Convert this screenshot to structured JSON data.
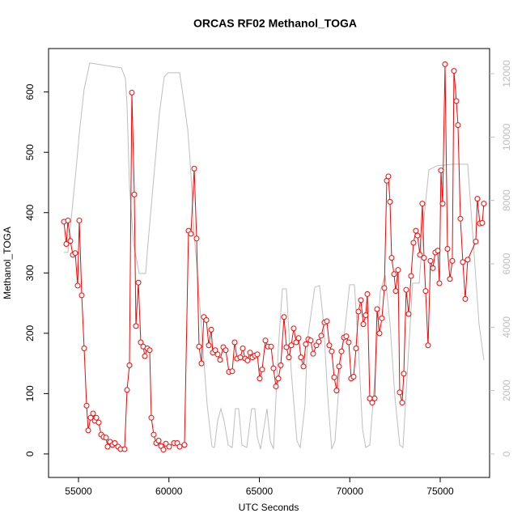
{
  "chart_data": {
    "type": "line",
    "title": "ORCAS RF02 Methanol_TOGA",
    "x_label": "UTC Seconds",
    "y_label": "Methanol_TOGA",
    "xlim": [
      53345,
      77730
    ],
    "xticks": [
      55000,
      60000,
      65000,
      70000,
      75000
    ],
    "ylim": [
      -39,
      672
    ],
    "yticks": [
      0,
      100,
      200,
      300,
      400,
      500,
      600
    ],
    "y2lim": [
      -741,
      12792
    ],
    "y2ticks": [
      0,
      2000,
      4000,
      6000,
      8000,
      10000,
      12000
    ],
    "y2_color": "#bebebe",
    "series": [
      {
        "color": "#bebebe",
        "axis": "y2",
        "markers": false,
        "x": [
          54194,
          54418,
          54687,
          54866,
          55045,
          55313,
          55626,
          57371,
          57595,
          57684,
          57818,
          58042,
          58355,
          58713,
          58847,
          59161,
          59474,
          59742,
          59966,
          60592,
          60727,
          61040,
          61174,
          61398,
          61621,
          61845,
          62113,
          62382,
          62516,
          62695,
          62874,
          63053,
          63277,
          63500,
          63679,
          63858,
          64037,
          64306,
          64574,
          64753,
          64887,
          65066,
          65245,
          65424,
          65603,
          65782,
          66051,
          66274,
          66498,
          66766,
          67080,
          67259,
          67527,
          67661,
          68064,
          68332,
          68556,
          68780,
          69003,
          69182,
          69451,
          69764,
          69988,
          70256,
          70480,
          70704,
          70882,
          71106,
          71375,
          71688,
          71956,
          72225,
          72493,
          72762,
          72941,
          73209,
          73477,
          73835,
          74104,
          74372,
          74640,
          74819,
          75714,
          76519,
          76832,
          77145,
          77414
        ],
        "values": [
          6360,
          6360,
          7943,
          8965,
          10114,
          11519,
          12336,
          12183,
          11851,
          11008,
          8454,
          6666,
          5695,
          5695,
          6666,
          8709,
          10752,
          11902,
          12029,
          12029,
          11519,
          10242,
          9220,
          6921,
          5389,
          3601,
          1558,
          230,
          204,
          1047,
          1430,
          1047,
          281,
          204,
          1430,
          1430,
          281,
          204,
          1430,
          1430,
          536,
          153,
          792,
          1430,
          409,
          153,
          3346,
          5210,
          5210,
          2580,
          409,
          204,
          1558,
          3601,
          5261,
          5312,
          4112,
          1813,
          153,
          409,
          2580,
          4112,
          5338,
          5338,
          3346,
          792,
          204,
          281,
          2324,
          5134,
          5644,
          4112,
          1813,
          281,
          204,
          2835,
          5389,
          5389,
          7432,
          8965,
          9041,
          9092,
          9143,
          9143,
          6666,
          4112,
          2963
        ]
      },
      {
        "color": "#ff0000",
        "markers": true,
        "x": [
          54194,
          54329,
          54418,
          54552,
          54687,
          54821,
          54955,
          55045,
          55179,
          55313,
          55448,
          55537,
          55671,
          55805,
          55895,
          55985,
          56119,
          56253,
          56387,
          56521,
          56610,
          56745,
          56879,
          57013,
          57192,
          57326,
          57550,
          57684,
          57818,
          57952,
          58087,
          58176,
          58311,
          58445,
          58579,
          58669,
          58803,
          58937,
          59027,
          59161,
          59295,
          59430,
          59564,
          59697,
          59832,
          60011,
          60279,
          60458,
          60593,
          60861,
          61084,
          61218,
          61398,
          61532,
          61666,
          61800,
          61934,
          62069,
          62203,
          62337,
          62427,
          62561,
          62695,
          62829,
          63008,
          63142,
          63321,
          63500,
          63635,
          63769,
          63948,
          64082,
          64216,
          64350,
          64484,
          64619,
          64753,
          64887,
          65021,
          65156,
          65335,
          65469,
          65648,
          65782,
          65916,
          66051,
          66185,
          66364,
          66498,
          66632,
          66766,
          66901,
          67035,
          67169,
          67303,
          67438,
          67572,
          67706,
          67840,
          67974,
          68153,
          68288,
          68422,
          68601,
          68735,
          68869,
          69003,
          69138,
          69272,
          69406,
          69540,
          69675,
          69809,
          69943,
          70077,
          70211,
          70346,
          70480,
          70614,
          70748,
          70882,
          70972,
          71106,
          71241,
          71375,
          71509,
          71643,
          71777,
          71912,
          72046,
          72135,
          72225,
          72314,
          72448,
          72538,
          72672,
          72762,
          72896,
          72985,
          73120,
          73254,
          73388,
          73522,
          73656,
          73746,
          73880,
          74014,
          74104,
          74193,
          74328,
          74462,
          74596,
          74730,
          74864,
          74954,
          75043,
          75133,
          75267,
          75401,
          75535,
          75670,
          75759,
          75893,
          75983,
          76117,
          76251,
          76385,
          76519,
          76967,
          77056,
          77190,
          77325,
          77414
        ],
        "values": [
          385,
          348,
          387,
          353,
          330,
          333,
          279,
          387,
          263,
          175,
          80,
          39,
          60,
          67,
          55,
          60,
          52,
          32,
          28,
          27,
          12,
          20,
          15,
          18,
          12,
          8,
          8,
          106,
          147,
          599,
          430,
          212,
          284,
          185,
          178,
          162,
          175,
          172,
          60,
          32,
          18,
          22,
          13,
          7,
          17,
          12,
          18,
          18,
          12,
          15,
          370,
          365,
          473,
          357,
          178,
          150,
          227,
          222,
          180,
          206,
          168,
          172,
          165,
          156,
          177,
          172,
          136,
          137,
          185,
          158,
          160,
          175,
          158,
          155,
          168,
          160,
          163,
          165,
          125,
          140,
          188,
          178,
          178,
          142,
          112,
          125,
          147,
          227,
          177,
          160,
          180,
          208,
          185,
          192,
          160,
          145,
          182,
          190,
          188,
          166,
          180,
          186,
          196,
          218,
          220,
          180,
          170,
          127,
          105,
          145,
          170,
          193,
          195,
          185,
          125,
          128,
          175,
          236,
          255,
          215,
          230,
          265,
          92,
          85,
          92,
          240,
          200,
          225,
          275,
          453,
          460,
          418,
          325,
          298,
          270,
          305,
          102,
          85,
          133,
          272,
          232,
          295,
          350,
          370,
          362,
          330,
          415,
          325,
          270,
          180,
          320,
          308,
          334,
          337,
          283,
          470,
          415,
          646,
          340,
          290,
          320,
          635,
          585,
          545,
          390,
          318,
          257,
          322,
          352,
          423,
          382,
          383,
          415
        ]
      }
    ]
  }
}
